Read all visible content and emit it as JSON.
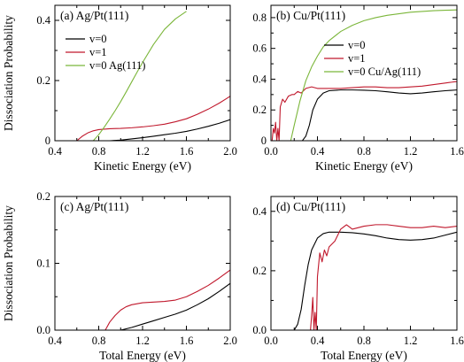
{
  "colors": {
    "black": "#000000",
    "red": "#c0182c",
    "green": "#7bb63a"
  },
  "chart_data": [
    {
      "id": "a",
      "type": "line",
      "panel_label": "(a) Ag/Pt(111)",
      "xlabel": "Kinetic Energy (eV)",
      "ylabel": "Dissociation Probability",
      "xlim": [
        0.4,
        2.0
      ],
      "ylim": [
        0,
        0.45
      ],
      "xticks": [
        0.4,
        0.8,
        1.2,
        1.6,
        2.0
      ],
      "xtick_labels": [
        "0.4",
        "0.8",
        "1.2",
        "1.6",
        "2.0"
      ],
      "yticks": [
        0,
        0.2,
        0.4
      ],
      "ytick_labels": [
        "0",
        "0.2",
        "0.4"
      ],
      "grid": false,
      "legend_position": "top-left",
      "series": [
        {
          "name": "v=0",
          "color": "#000000",
          "x": [
            0.9,
            1.0,
            1.1,
            1.2,
            1.3,
            1.4,
            1.5,
            1.6,
            1.7,
            1.8,
            1.9,
            2.0
          ],
          "y": [
            0.0,
            0.002,
            0.006,
            0.01,
            0.015,
            0.02,
            0.025,
            0.031,
            0.039,
            0.048,
            0.058,
            0.07
          ]
        },
        {
          "name": "v=1",
          "color": "#c0182c",
          "x": [
            0.6,
            0.65,
            0.7,
            0.75,
            0.8,
            0.9,
            1.0,
            1.1,
            1.2,
            1.3,
            1.4,
            1.5,
            1.6,
            1.7,
            1.8,
            1.9,
            2.0
          ],
          "y": [
            0.0,
            0.015,
            0.026,
            0.033,
            0.037,
            0.04,
            0.041,
            0.043,
            0.046,
            0.05,
            0.055,
            0.063,
            0.073,
            0.088,
            0.105,
            0.125,
            0.148
          ]
        },
        {
          "name": "v=0 Ag(111)",
          "color": "#7bb63a",
          "x": [
            0.75,
            0.8,
            0.85,
            0.9,
            0.95,
            1.0,
            1.05,
            1.1,
            1.15,
            1.2,
            1.3,
            1.4,
            1.5,
            1.6
          ],
          "y": [
            0.0,
            0.02,
            0.045,
            0.072,
            0.1,
            0.13,
            0.162,
            0.195,
            0.228,
            0.26,
            0.32,
            0.37,
            0.405,
            0.43
          ]
        }
      ]
    },
    {
      "id": "b",
      "type": "line",
      "panel_label": "(b) Cu/Pt(111)",
      "xlabel": "Kinetic Energy (eV)",
      "ylabel": "",
      "xlim": [
        0,
        1.6
      ],
      "ylim": [
        0,
        0.88
      ],
      "xticks": [
        0,
        0.4,
        0.8,
        1.2,
        1.6
      ],
      "xtick_labels": [
        "0.0",
        "0.4",
        "0.8",
        "1.2",
        "1.6"
      ],
      "yticks": [
        0,
        0.2,
        0.4,
        0.6,
        0.8
      ],
      "ytick_labels": [
        "0",
        "0.2",
        "0.4",
        "0.6",
        "0.8"
      ],
      "grid": false,
      "legend_position": "center-right",
      "series": [
        {
          "name": "v=0",
          "color": "#000000",
          "x": [
            0.27,
            0.3,
            0.33,
            0.36,
            0.4,
            0.45,
            0.5,
            0.6,
            0.7,
            0.8,
            0.9,
            1.0,
            1.1,
            1.2,
            1.3,
            1.4,
            1.5,
            1.6
          ],
          "y": [
            0.0,
            0.03,
            0.1,
            0.2,
            0.27,
            0.31,
            0.325,
            0.33,
            0.33,
            0.328,
            0.325,
            0.318,
            0.31,
            0.305,
            0.31,
            0.318,
            0.325,
            0.33
          ]
        },
        {
          "name": "v=1",
          "color": "#c0182c",
          "x": [
            0.01,
            0.02,
            0.03,
            0.04,
            0.05,
            0.06,
            0.07,
            0.08,
            0.1,
            0.12,
            0.15,
            0.18,
            0.2,
            0.23,
            0.26,
            0.3,
            0.35,
            0.4,
            0.5,
            0.6,
            0.7,
            0.8,
            0.9,
            1.0,
            1.1,
            1.2,
            1.3,
            1.4,
            1.5,
            1.6
          ],
          "y": [
            0.0,
            0.08,
            0.05,
            0.12,
            0.0,
            0.08,
            0.0,
            0.22,
            0.27,
            0.25,
            0.29,
            0.3,
            0.3,
            0.32,
            0.31,
            0.34,
            0.35,
            0.34,
            0.34,
            0.34,
            0.345,
            0.35,
            0.35,
            0.345,
            0.345,
            0.35,
            0.355,
            0.365,
            0.375,
            0.385
          ]
        },
        {
          "name": "v=0 Cu/Ag(111)",
          "color": "#7bb63a",
          "x": [
            0.17,
            0.2,
            0.25,
            0.3,
            0.35,
            0.4,
            0.45,
            0.5,
            0.6,
            0.7,
            0.8,
            0.9,
            1.0,
            1.1,
            1.2,
            1.3,
            1.4,
            1.5,
            1.6
          ],
          "y": [
            0.0,
            0.1,
            0.26,
            0.39,
            0.48,
            0.55,
            0.61,
            0.65,
            0.71,
            0.75,
            0.78,
            0.8,
            0.815,
            0.825,
            0.835,
            0.84,
            0.845,
            0.848,
            0.85
          ]
        }
      ]
    },
    {
      "id": "c",
      "type": "line",
      "panel_label": "(c) Ag/Pt(111)",
      "xlabel": "Total Energy (eV)",
      "ylabel": "Dissociation Probability",
      "xlim": [
        0.4,
        2.0
      ],
      "ylim": [
        0,
        0.2
      ],
      "xticks": [
        0.4,
        0.8,
        1.2,
        1.6,
        2.0
      ],
      "xtick_labels": [
        "0.4",
        "0.8",
        "1.2",
        "1.6",
        "2.0"
      ],
      "yticks": [
        0,
        0.1,
        0.2
      ],
      "ytick_labels": [
        "0.0",
        "0.1",
        "0.2"
      ],
      "grid": false,
      "legend_position": "none",
      "series": [
        {
          "name": "",
          "color": "#000000",
          "x": [
            1.0,
            1.1,
            1.2,
            1.3,
            1.4,
            1.5,
            1.6,
            1.7,
            1.8,
            1.9,
            2.0
          ],
          "y": [
            0.0,
            0.004,
            0.009,
            0.014,
            0.019,
            0.024,
            0.03,
            0.038,
            0.047,
            0.058,
            0.07
          ]
        },
        {
          "name": "",
          "color": "#c0182c",
          "x": [
            0.86,
            0.9,
            0.95,
            1.0,
            1.05,
            1.1,
            1.2,
            1.3,
            1.4,
            1.5,
            1.6,
            1.7,
            1.8,
            1.9,
            2.0
          ],
          "y": [
            0.0,
            0.012,
            0.022,
            0.03,
            0.035,
            0.038,
            0.041,
            0.042,
            0.043,
            0.045,
            0.05,
            0.058,
            0.067,
            0.078,
            0.09
          ]
        }
      ]
    },
    {
      "id": "d",
      "type": "line",
      "panel_label": "(d) Cu/Pt(111)",
      "xlabel": "Total Energy (eV)",
      "ylabel": "",
      "xlim": [
        0,
        1.6
      ],
      "ylim": [
        0,
        0.45
      ],
      "xticks": [
        0,
        0.4,
        0.8,
        1.2,
        1.6
      ],
      "xtick_labels": [
        "0.0",
        "0.4",
        "0.8",
        "1.2",
        "1.6"
      ],
      "yticks": [
        0,
        0.2,
        0.4
      ],
      "ytick_labels": [
        "0.0",
        "0.2",
        "0.4"
      ],
      "grid": false,
      "legend_position": "none",
      "series": [
        {
          "name": "",
          "color": "#000000",
          "x": [
            0.2,
            0.23,
            0.26,
            0.29,
            0.32,
            0.35,
            0.4,
            0.45,
            0.5,
            0.6,
            0.7,
            0.8,
            0.9,
            1.0,
            1.1,
            1.2,
            1.3,
            1.4,
            1.5,
            1.6
          ],
          "y": [
            0.0,
            0.02,
            0.07,
            0.15,
            0.22,
            0.27,
            0.31,
            0.325,
            0.33,
            0.33,
            0.328,
            0.324,
            0.318,
            0.31,
            0.305,
            0.303,
            0.305,
            0.31,
            0.32,
            0.33
          ]
        },
        {
          "name": "",
          "color": "#c0182c",
          "x": [
            0.34,
            0.35,
            0.36,
            0.37,
            0.38,
            0.39,
            0.4,
            0.42,
            0.44,
            0.46,
            0.48,
            0.5,
            0.55,
            0.6,
            0.65,
            0.7,
            0.8,
            0.9,
            1.0,
            1.1,
            1.2,
            1.3,
            1.4,
            1.5,
            1.6
          ],
          "y": [
            0.0,
            0.05,
            0.11,
            0.0,
            0.06,
            0.0,
            0.18,
            0.26,
            0.23,
            0.27,
            0.25,
            0.28,
            0.3,
            0.34,
            0.355,
            0.34,
            0.35,
            0.355,
            0.355,
            0.35,
            0.345,
            0.345,
            0.35,
            0.345,
            0.35
          ]
        }
      ]
    }
  ]
}
